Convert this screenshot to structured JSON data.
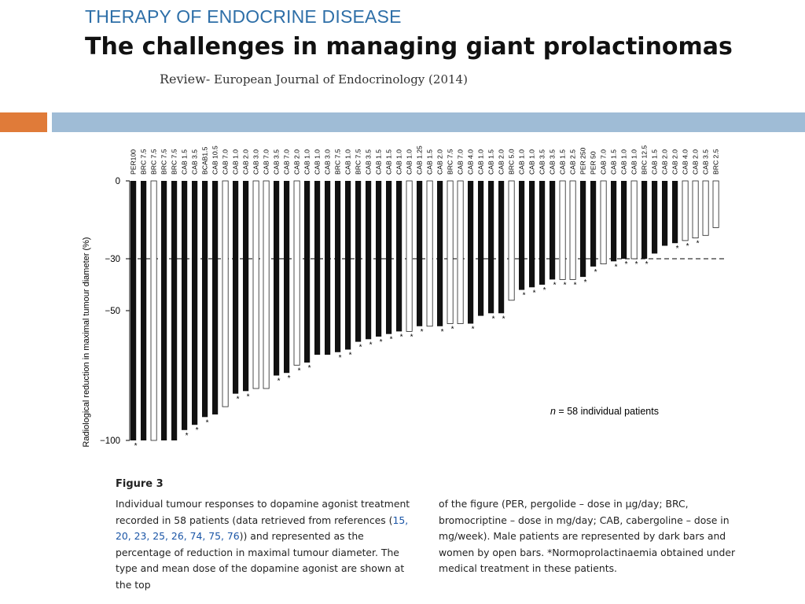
{
  "slide": {
    "kicker": "THERAPY OF ENDOCRINE DISEASE",
    "title": "The challenges in managing giant prolactinomas",
    "subtitle_lead": "Review-",
    "subtitle_rest": " European Journal of Endocrinology (2014)",
    "colors": {
      "kicker": "#2e6fa8",
      "accent": "#e07b39",
      "band": "#9fbcd6",
      "link": "#1a55a6"
    }
  },
  "chart_data": {
    "type": "bar",
    "ylabel": "Radiological reduction in maximal tumour diameter (%)",
    "yticks": [
      {
        "value": 0,
        "label": "0"
      },
      {
        "value": -30,
        "label": "−30"
      },
      {
        "value": -50,
        "label": "−50"
      },
      {
        "value": -100,
        "label": "−100"
      }
    ],
    "ylim": [
      -100,
      0
    ],
    "threshold": -30,
    "annotation": "n = 58 individual patients",
    "annotation_italic": "n",
    "annotation_rest": " = 58 individual patients",
    "categories": [
      "PER100",
      "BRC 7.5",
      "BRC 7.5",
      "BRC 7.5",
      "BRC 7.5",
      "CAB 1.5",
      "CAB 3.5",
      "BCAB1.5",
      "CAB 10.5",
      "CAB 7.0",
      "CAB 1.0",
      "CAB 2.0",
      "CAB 3.0",
      "CAB 7.0",
      "CAB 3.5",
      "CAB 7.0",
      "CAB 2.0",
      "CAB 1.0",
      "CAB 1.0",
      "CAB 3.0",
      "BRC 7.5",
      "CAB 1.0",
      "BRC 7.5",
      "CAB 3.5",
      "CAB 1.5",
      "CAB 1.5",
      "CAB 1.0",
      "CAB 1.0",
      "CAB 1.25",
      "CAB 1.5",
      "CAB 2.0",
      "BRC 7.5",
      "CAB 7.0",
      "CAB 4.0",
      "CAB 1.0",
      "CAB 1.5",
      "CAB 2.0",
      "BRC 5.0",
      "CAB 1.0",
      "CAB 1.0",
      "CAB 3.5",
      "CAB 3.5",
      "CAB 1.5",
      "CAB 2.5",
      "PER 250",
      "PER 50",
      "CAB 7.0",
      "CAB 1.5",
      "CAB 1.0",
      "CAB 1.0",
      "BRC 12.5",
      "CAB 1.5",
      "CAB 2.0",
      "CAB 2.0",
      "CAB 4.0",
      "CAB 2.0",
      "CAB 3.5",
      "BRC 2.5"
    ],
    "values": [
      -100,
      -100,
      -100,
      -100,
      -100,
      -96,
      -94,
      -91,
      -90,
      -87,
      -82,
      -81,
      -80,
      -80,
      -75,
      -74,
      -71,
      -70,
      -67,
      -67,
      -66,
      -65,
      -62,
      -61,
      -60,
      -59,
      -58,
      -58,
      -56,
      -56,
      -56,
      -55,
      -55,
      -55,
      -52,
      -51,
      -51,
      -46,
      -42,
      -41,
      -40,
      -38,
      -38,
      -38,
      -37,
      -33,
      -32,
      -31,
      -30,
      -30,
      -30,
      -28,
      -25,
      -24,
      -23,
      -22,
      -21,
      -18
    ],
    "male": [
      true,
      true,
      false,
      true,
      true,
      true,
      true,
      true,
      true,
      false,
      true,
      true,
      false,
      false,
      true,
      true,
      false,
      true,
      true,
      true,
      true,
      true,
      true,
      true,
      true,
      true,
      true,
      false,
      true,
      false,
      true,
      false,
      false,
      true,
      true,
      true,
      true,
      false,
      true,
      true,
      true,
      true,
      false,
      false,
      true,
      true,
      false,
      true,
      true,
      false,
      true,
      true,
      true,
      true,
      false,
      false,
      false,
      false
    ],
    "normoprolactinaemia": [
      true,
      false,
      false,
      false,
      false,
      true,
      true,
      true,
      false,
      false,
      true,
      true,
      false,
      false,
      true,
      true,
      true,
      true,
      false,
      false,
      true,
      true,
      true,
      true,
      true,
      true,
      true,
      true,
      true,
      false,
      true,
      true,
      false,
      true,
      false,
      true,
      true,
      false,
      true,
      true,
      true,
      true,
      true,
      true,
      true,
      true,
      false,
      true,
      true,
      true,
      true,
      false,
      false,
      true,
      true,
      true,
      false,
      false
    ],
    "star_symbol": "*",
    "legend": "none"
  },
  "figure": {
    "heading": "Figure 3",
    "left_text_1": "Individual tumour responses to dopamine agonist treatment recorded in 58 patients (data retrieved from references (",
    "refs": "15, 20, 23, 25, 26, 74, 75, 76",
    "left_text_2": ")) and represented as the percentage of reduction in maximal tumour diameter. The type and mean dose of the dopamine agonist are shown at the top",
    "right_text": "of the figure (PER, pergolide – dose in μg/day; BRC, bromocriptine – dose in mg/day; CAB, cabergoline – dose in mg/week). Male patients are represented by dark bars and women by open bars. *Normoprolactinaemia obtained under medical treatment in these patients."
  }
}
